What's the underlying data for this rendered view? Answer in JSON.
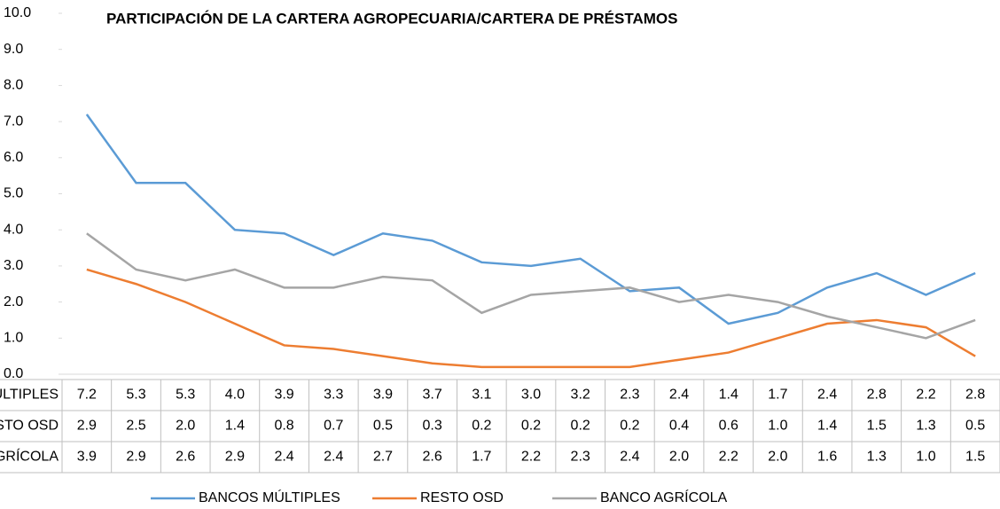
{
  "chart_data": {
    "type": "line",
    "title": "PARTICIPACIÓN DE LA CARTERA AGROPECUARIA/CARTERA DE PRÉSTAMOS",
    "ylim": [
      0,
      10
    ],
    "yticks": [
      {
        "value": 0,
        "label": "0.0"
      },
      {
        "value": 1,
        "label": "1.0"
      },
      {
        "value": 2,
        "label": "2.0"
      },
      {
        "value": 3,
        "label": "3.0"
      },
      {
        "value": 4,
        "label": "4.0"
      },
      {
        "value": 5,
        "label": "5.0"
      },
      {
        "value": 6,
        "label": "6.0"
      },
      {
        "value": 7,
        "label": "7.0"
      },
      {
        "value": 8,
        "label": "8.0"
      },
      {
        "value": 9,
        "label": "9.0"
      },
      {
        "value": 10,
        "label": "10.0"
      }
    ],
    "grid": false,
    "series": [
      {
        "name": "BANCOS MÚLTIPLES",
        "color": "#5b9bd5",
        "values": [
          7.2,
          5.3,
          5.3,
          4.0,
          3.9,
          3.3,
          3.9,
          3.7,
          3.1,
          3.0,
          3.2,
          2.3,
          2.4,
          1.4,
          1.7,
          2.4,
          2.8,
          2.2,
          2.8
        ],
        "value_labels": [
          "7.2",
          "5.3",
          "5.3",
          "4.0",
          "3.9",
          "3.3",
          "3.9",
          "3.7",
          "3.1",
          "3.0",
          "3.2",
          "2.3",
          "2.4",
          "1.4",
          "1.7",
          "2.4",
          "2.8",
          "2.2",
          "2.8"
        ]
      },
      {
        "name": "RESTO OSD",
        "color": "#ed7d31",
        "values": [
          2.9,
          2.5,
          2.0,
          1.4,
          0.8,
          0.7,
          0.5,
          0.3,
          0.2,
          0.2,
          0.2,
          0.2,
          0.4,
          0.6,
          1.0,
          1.4,
          1.5,
          1.3,
          0.5
        ],
        "value_labels": [
          "2.9",
          "2.5",
          "2.0",
          "1.4",
          "0.8",
          "0.7",
          "0.5",
          "0.3",
          "0.2",
          "0.2",
          "0.2",
          "0.2",
          "0.4",
          "0.6",
          "1.0",
          "1.4",
          "1.5",
          "1.3",
          "0.5"
        ]
      },
      {
        "name": "BANCO AGRÍCOLA",
        "color": "#a5a5a5",
        "values": [
          3.9,
          2.9,
          2.6,
          2.9,
          2.4,
          2.4,
          2.7,
          2.6,
          1.7,
          2.2,
          2.3,
          2.4,
          2.0,
          2.2,
          2.0,
          1.6,
          1.3,
          1.0,
          1.5
        ],
        "value_labels": [
          "3.9",
          "2.9",
          "2.6",
          "2.9",
          "2.4",
          "2.4",
          "2.7",
          "2.6",
          "1.7",
          "2.2",
          "2.3",
          "2.4",
          "2.0",
          "2.2",
          "2.0",
          "1.6",
          "1.3",
          "1.0",
          "1.5"
        ]
      }
    ]
  }
}
